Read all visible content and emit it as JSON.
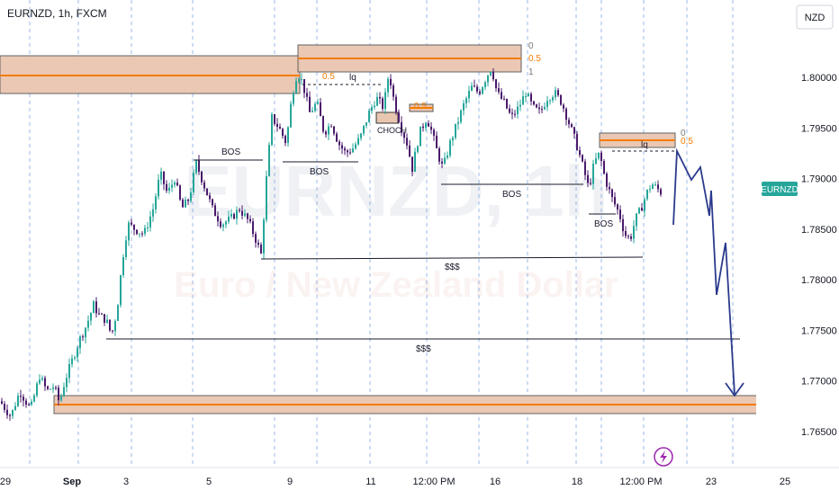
{
  "header": {
    "symbol": "EURNZD, 1h, FXCM"
  },
  "watermark": {
    "ticker": "EURNZD, 1h",
    "name": "Euro / New Zealand Dollar"
  },
  "currency_label": "NZD",
  "price_axis": {
    "ticks": [
      "1.80000",
      "1.79500",
      "1.79000",
      "1.78500",
      "1.78000",
      "1.77500",
      "1.77000",
      "1.76500"
    ],
    "current_badge": "EURNZD"
  },
  "time_axis": {
    "labels": [
      "29",
      "Sep",
      "3",
      "5",
      "9",
      "11",
      "12:00 PM",
      "16",
      "18",
      "12:00 PM",
      "23",
      "25"
    ]
  },
  "annotations": {
    "bos_labels": [
      "BOS",
      "BOS",
      "BOS",
      "BOS"
    ],
    "liquidity_labels": [
      "lq",
      "lq"
    ],
    "choch_label": "CHOCH",
    "sss_labels": [
      "$$$",
      "$$$"
    ],
    "fib_upper": [
      "0",
      "0.5",
      "1"
    ],
    "fib_left": [
      "0.5"
    ],
    "fib_mid": [
      "0.5"
    ],
    "fib_right": [
      "0",
      "0.5"
    ]
  },
  "colors": {
    "up_candle": "#26a69a",
    "down_candle": "#4a1a6b",
    "zone_fill": "#e9c6b0",
    "fib_mid_line": "#f57c00",
    "projection": "#2b3a8c",
    "grid_dash": "#4a7fd6",
    "badge": "#26a69a"
  },
  "chart_data": {
    "type": "candlestick",
    "title": "EURNZD, 1h, FXCM",
    "ylim": [
      1.7625,
      1.8065
    ],
    "x_categories": [
      "29",
      "Sep",
      "3",
      "5",
      "9",
      "11",
      "12:00 PM",
      "16",
      "18",
      "12:00 PM",
      "23",
      "25"
    ],
    "price_path": [
      [
        0,
        1.768
      ],
      [
        12,
        1.7665
      ],
      [
        22,
        1.769
      ],
      [
        34,
        1.7672
      ],
      [
        44,
        1.7705
      ],
      [
        52,
        1.769
      ],
      [
        60,
        1.7695
      ],
      [
        66,
        1.7678
      ],
      [
        72,
        1.77
      ],
      [
        80,
        1.772
      ],
      [
        88,
        1.774
      ],
      [
        96,
        1.7755
      ],
      [
        104,
        1.7775
      ],
      [
        110,
        1.7765
      ],
      [
        118,
        1.776
      ],
      [
        124,
        1.7745
      ],
      [
        130,
        1.777
      ],
      [
        136,
        1.782
      ],
      [
        142,
        1.7855
      ],
      [
        150,
        1.785
      ],
      [
        160,
        1.7845
      ],
      [
        170,
        1.787
      ],
      [
        178,
        1.7905
      ],
      [
        186,
        1.7885
      ],
      [
        194,
        1.79
      ],
      [
        202,
        1.787
      ],
      [
        210,
        1.788
      ],
      [
        218,
        1.7915
      ],
      [
        226,
        1.7895
      ],
      [
        236,
        1.787
      ],
      [
        246,
        1.7855
      ],
      [
        256,
        1.786
      ],
      [
        266,
        1.787
      ],
      [
        276,
        1.7858
      ],
      [
        284,
        1.784
      ],
      [
        290,
        1.7825
      ],
      [
        296,
        1.79
      ],
      [
        302,
        1.796
      ],
      [
        310,
        1.795
      ],
      [
        318,
        1.7935
      ],
      [
        324,
        1.798
      ],
      [
        330,
        1.8005
      ],
      [
        336,
        1.7995
      ],
      [
        344,
        1.7965
      ],
      [
        352,
        1.7975
      ],
      [
        360,
        1.7945
      ],
      [
        368,
        1.7955
      ],
      [
        376,
        1.7935
      ],
      [
        384,
        1.7925
      ],
      [
        392,
        1.793
      ],
      [
        400,
        1.794
      ],
      [
        410,
        1.7965
      ],
      [
        418,
        1.798
      ],
      [
        426,
        1.797
      ],
      [
        432,
        1.8005
      ],
      [
        438,
        1.7975
      ],
      [
        446,
        1.795
      ],
      [
        452,
        1.7935
      ],
      [
        458,
        1.791
      ],
      [
        466,
        1.7945
      ],
      [
        474,
        1.796
      ],
      [
        480,
        1.7945
      ],
      [
        486,
        1.7925
      ],
      [
        492,
        1.791
      ],
      [
        500,
        1.7935
      ],
      [
        508,
        1.7955
      ],
      [
        516,
        1.7975
      ],
      [
        524,
        1.799
      ],
      [
        532,
        1.7985
      ],
      [
        540,
        1.8
      ],
      [
        546,
        1.801
      ],
      [
        552,
        1.7985
      ],
      [
        560,
        1.7975
      ],
      [
        568,
        1.796
      ],
      [
        576,
        1.797
      ],
      [
        584,
        1.7985
      ],
      [
        592,
        1.797
      ],
      [
        600,
        1.7965
      ],
      [
        608,
        1.798
      ],
      [
        616,
        1.7985
      ],
      [
        624,
        1.7975
      ],
      [
        632,
        1.7955
      ],
      [
        640,
        1.7935
      ],
      [
        648,
        1.791
      ],
      [
        654,
        1.789
      ],
      [
        660,
        1.7915
      ],
      [
        666,
        1.7925
      ],
      [
        672,
        1.79
      ],
      [
        680,
        1.788
      ],
      [
        688,
        1.7865
      ],
      [
        694,
        1.7845
      ],
      [
        700,
        1.784
      ],
      [
        706,
        1.786
      ],
      [
        712,
        1.787
      ],
      [
        718,
        1.7885
      ],
      [
        724,
        1.7895
      ],
      [
        730,
        1.789
      ],
      [
        736,
        1.7885
      ]
    ],
    "zones": [
      {
        "name": "upper-left supply",
        "from": 1.8007,
        "to": 1.7983
      },
      {
        "name": "top supply",
        "from": 1.803,
        "to": 1.8005
      },
      {
        "name": "right supply",
        "from": 1.794,
        "to": 1.7928
      },
      {
        "name": "demand target",
        "from": 1.7683,
        "to": 1.767
      }
    ],
    "liquidity_levels": [
      1.7822,
      1.774
    ],
    "projection_path": [
      [
        752,
        1.7928
      ],
      [
        770,
        1.7905
      ],
      [
        790,
        1.7885
      ],
      [
        798,
        1.7765
      ],
      [
        816,
        1.768
      ]
    ]
  }
}
